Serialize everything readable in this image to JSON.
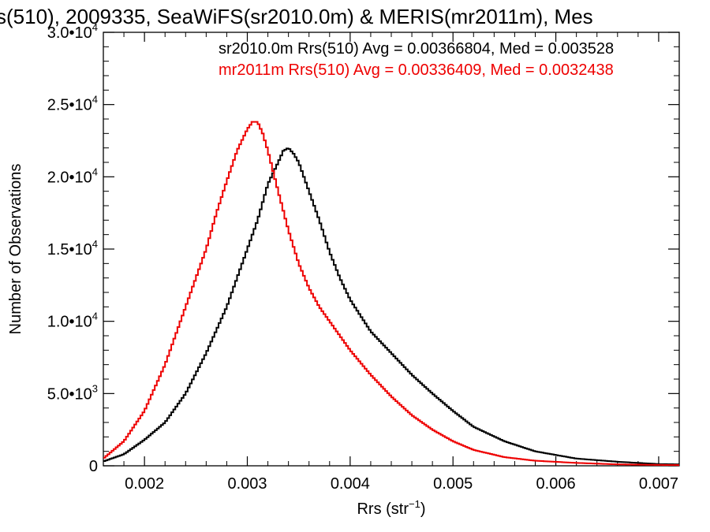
{
  "chart_data": {
    "type": "line",
    "title": "s(510), 2009335, SeaWiFS(sr2010.0m) & MERIS(mr2011m), Mes",
    "xlabel_main": "Rrs (str",
    "xlabel_sup": "−1",
    "xlabel_tail": ")",
    "ylabel": "Number of Observations",
    "xlim": [
      0.0016,
      0.0072
    ],
    "ylim": [
      0,
      30000
    ],
    "grid": false,
    "x_ticks": [
      {
        "value": 0.002,
        "label": "0.002"
      },
      {
        "value": 0.003,
        "label": "0.003"
      },
      {
        "value": 0.004,
        "label": "0.004"
      },
      {
        "value": 0.005,
        "label": "0.005"
      },
      {
        "value": 0.006,
        "label": "0.006"
      },
      {
        "value": 0.007,
        "label": "0.007"
      }
    ],
    "y_ticks": [
      {
        "value": 0,
        "mant": "0",
        "exp": ""
      },
      {
        "value": 5000,
        "mant": "5.0•10",
        "exp": "3"
      },
      {
        "value": 10000,
        "mant": "1.0•10",
        "exp": "4"
      },
      {
        "value": 15000,
        "mant": "1.5•10",
        "exp": "4"
      },
      {
        "value": 20000,
        "mant": "2.0•10",
        "exp": "4"
      },
      {
        "value": 25000,
        "mant": "2.5•10",
        "exp": "4"
      },
      {
        "value": 30000,
        "mant": "3.0•10",
        "exp": "4"
      }
    ],
    "series": [
      {
        "name": "sr2010.0m",
        "color": "#000000",
        "annotation": "sr2010.0m Rrs(510) Avg = 0.00366804, Med = 0.003528",
        "x": [
          0.0016,
          0.0018,
          0.002,
          0.0022,
          0.0024,
          0.0026,
          0.0028,
          0.0029,
          0.003,
          0.0031,
          0.0032,
          0.0033,
          0.00335,
          0.0034,
          0.00345,
          0.0035,
          0.0036,
          0.0037,
          0.0038,
          0.0039,
          0.004,
          0.0042,
          0.0044,
          0.0046,
          0.0048,
          0.005,
          0.0052,
          0.0055,
          0.0058,
          0.0062,
          0.0066,
          0.007,
          0.0072
        ],
        "y": [
          300,
          800,
          1800,
          3000,
          5000,
          7800,
          11000,
          13000,
          15000,
          17000,
          19500,
          21000,
          21800,
          22000,
          21600,
          21000,
          19000,
          17000,
          14800,
          13000,
          11500,
          9300,
          7800,
          6300,
          5000,
          3800,
          2700,
          1700,
          1000,
          500,
          280,
          120,
          100
        ]
      },
      {
        "name": "mr2011m",
        "color": "#ee0000",
        "annotation": "mr2011m Rrs(510) Avg = 0.00336409, Med = 0.0032438",
        "x": [
          0.0016,
          0.0018,
          0.002,
          0.0022,
          0.0024,
          0.0026,
          0.0027,
          0.0028,
          0.0029,
          0.003,
          0.00305,
          0.0031,
          0.00315,
          0.0032,
          0.0033,
          0.0034,
          0.0035,
          0.0036,
          0.0037,
          0.0038,
          0.004,
          0.0042,
          0.0044,
          0.0046,
          0.0048,
          0.005,
          0.0052,
          0.0055,
          0.0058,
          0.0062,
          0.0066,
          0.007,
          0.0072
        ],
        "y": [
          500,
          1700,
          3800,
          7000,
          11000,
          15000,
          17500,
          19700,
          21800,
          23300,
          23800,
          23800,
          23000,
          21800,
          19000,
          16300,
          14000,
          12300,
          11000,
          10000,
          8000,
          6300,
          4800,
          3500,
          2500,
          1700,
          1100,
          600,
          350,
          200,
          100,
          60,
          50
        ]
      }
    ]
  }
}
